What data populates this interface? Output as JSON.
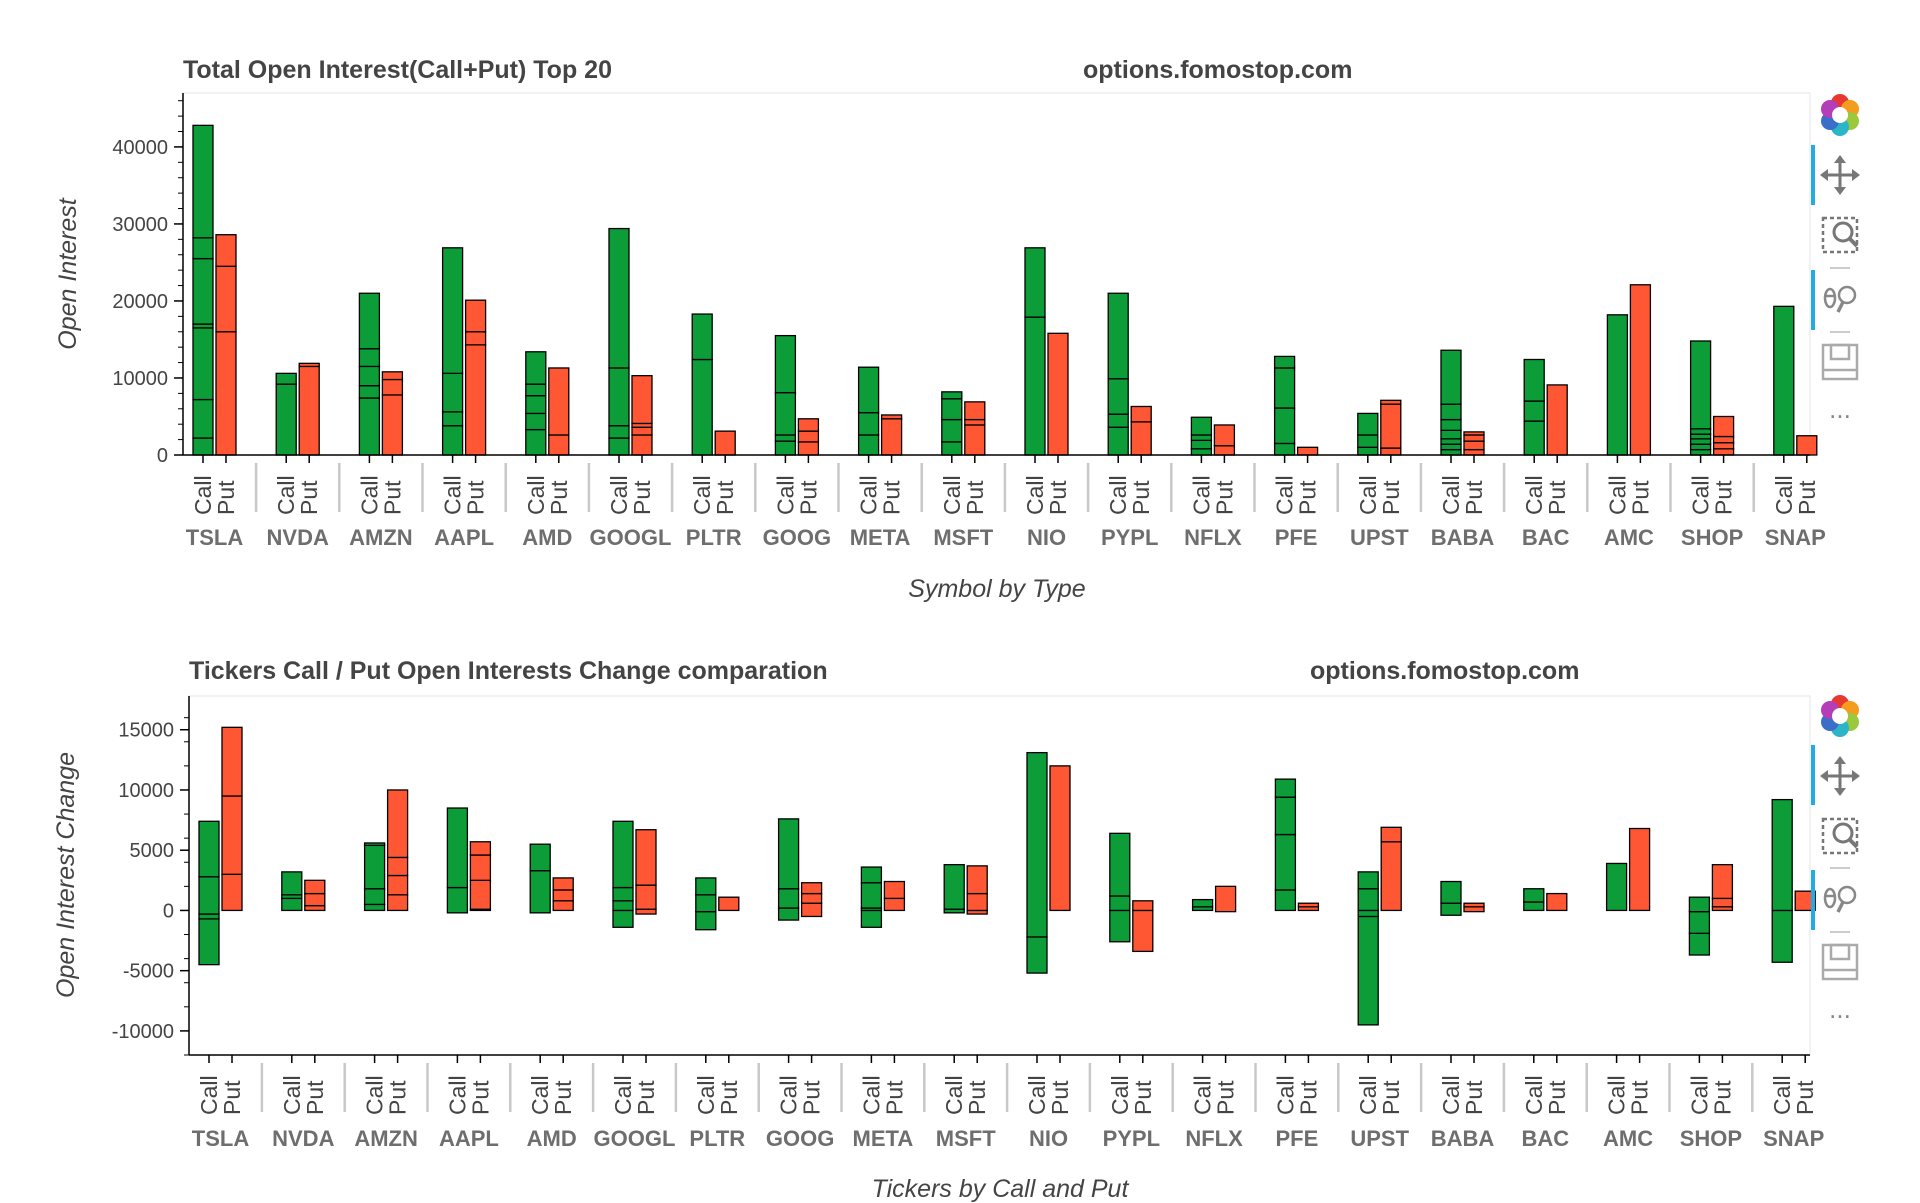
{
  "chart_data": [
    {
      "type": "bar",
      "stacked": true,
      "title": "Total Open Interest(Call+Put) Top 20",
      "watermark": "options.fomostop.com",
      "ylabel": "Open Interest",
      "xlabel": "Symbol by Type",
      "ylim": [
        0,
        47000
      ],
      "yticks": [
        0,
        10000,
        20000,
        30000,
        40000
      ],
      "subcategories": [
        "Call",
        "Put"
      ],
      "series_colors": {
        "Call": "#0c9d38",
        "Put": "#ff5733"
      },
      "groups": [
        {
          "name": "TSLA",
          "call": [
            0,
            2200,
            7200,
            16500,
            17000,
            25500,
            28200,
            42800
          ],
          "put": [
            0,
            16000,
            24500,
            28600
          ]
        },
        {
          "name": "NVDA",
          "call": [
            0,
            9200,
            10600
          ],
          "put": [
            0,
            11500,
            11900
          ]
        },
        {
          "name": "AMZN",
          "call": [
            0,
            7400,
            9000,
            11500,
            13800,
            21000
          ],
          "put": [
            0,
            7800,
            9800,
            10800
          ]
        },
        {
          "name": "AAPL",
          "call": [
            0,
            3800,
            5600,
            10600,
            26900
          ],
          "put": [
            0,
            14300,
            16000,
            20100
          ]
        },
        {
          "name": "AMD",
          "call": [
            0,
            3300,
            5400,
            7700,
            9200,
            13400
          ],
          "put": [
            0,
            2600,
            11300
          ]
        },
        {
          "name": "GOOGL",
          "call": [
            0,
            2200,
            3800,
            11300,
            29400
          ],
          "put": [
            0,
            2600,
            3600,
            4100,
            10300
          ]
        },
        {
          "name": "PLTR",
          "call": [
            0,
            12400,
            18300
          ],
          "put": [
            0,
            3100
          ]
        },
        {
          "name": "GOOG",
          "call": [
            0,
            1800,
            2600,
            8100,
            15500
          ],
          "put": [
            0,
            1700,
            3100,
            4700
          ]
        },
        {
          "name": "META",
          "call": [
            0,
            2600,
            5500,
            11400
          ],
          "put": [
            0,
            4700,
            5200
          ]
        },
        {
          "name": "MSFT",
          "call": [
            0,
            1700,
            4600,
            7300,
            8200
          ],
          "put": [
            0,
            3900,
            4600,
            6900
          ]
        },
        {
          "name": "NIO",
          "call": [
            0,
            17900,
            26900
          ],
          "put": [
            0,
            15800
          ]
        },
        {
          "name": "PYPL",
          "call": [
            0,
            3600,
            5300,
            9900,
            21000
          ],
          "put": [
            0,
            4300,
            6300
          ]
        },
        {
          "name": "NFLX",
          "call": [
            0,
            800,
            1900,
            2600,
            4900
          ],
          "put": [
            0,
            1200,
            3900
          ]
        },
        {
          "name": "PFE",
          "call": [
            0,
            1500,
            6100,
            11300,
            12800
          ],
          "put": [
            0,
            1000
          ]
        },
        {
          "name": "UPST",
          "call": [
            0,
            1000,
            2600,
            5400
          ],
          "put": [
            0,
            900,
            6600,
            7100
          ]
        },
        {
          "name": "BABA",
          "call": [
            0,
            700,
            1400,
            2100,
            3200,
            4600,
            6600,
            13600
          ],
          "put": [
            0,
            700,
            1800,
            2600,
            3000
          ]
        },
        {
          "name": "BAC",
          "call": [
            0,
            4400,
            7000,
            12400
          ],
          "put": [
            0,
            9100
          ]
        },
        {
          "name": "AMC",
          "call": [
            0,
            18200
          ],
          "put": [
            0,
            22100
          ]
        },
        {
          "name": "SHOP",
          "call": [
            0,
            700,
            1400,
            2100,
            2700,
            3400,
            14800
          ],
          "put": [
            0,
            800,
            1600,
            2400,
            5000
          ]
        },
        {
          "name": "SNAP",
          "call": [
            0,
            19300
          ],
          "put": [
            0,
            2500
          ]
        }
      ]
    },
    {
      "type": "bar",
      "stacked": true,
      "title": "Tickers Call / Put Open Interests Change comparation",
      "watermark": "options.fomostop.com",
      "ylabel": "Open Interest Change",
      "xlabel": "Tickers by Call and Put",
      "ylim": [
        -12000,
        17800
      ],
      "yticks": [
        -10000,
        -5000,
        0,
        5000,
        10000,
        15000
      ],
      "subcategories": [
        "Call",
        "Put"
      ],
      "series_colors": {
        "Call": "#0c9d38",
        "Put": "#ff5733"
      },
      "groups": [
        {
          "name": "TSLA",
          "call": [
            -4500,
            -700,
            -300,
            2800,
            7400
          ],
          "put": [
            0,
            3000,
            9500,
            15200
          ]
        },
        {
          "name": "NVDA",
          "call": [
            0,
            1000,
            1300,
            3200
          ],
          "put": [
            0,
            400,
            1400,
            2500
          ]
        },
        {
          "name": "AMZN",
          "call": [
            0,
            500,
            1800,
            5400,
            5600
          ],
          "put": [
            0,
            1300,
            2900,
            4400,
            10000
          ]
        },
        {
          "name": "AAPL",
          "call": [
            -200,
            1900,
            8500
          ],
          "put": [
            0,
            100,
            2500,
            4600,
            5700
          ]
        },
        {
          "name": "AMD",
          "call": [
            -200,
            3300,
            5500
          ],
          "put": [
            0,
            800,
            1700,
            2700
          ]
        },
        {
          "name": "GOOGL",
          "call": [
            -1400,
            0,
            800,
            1900,
            7400
          ],
          "put": [
            -300,
            100,
            2100,
            6700
          ]
        },
        {
          "name": "PLTR",
          "call": [
            -1600,
            -100,
            1300,
            2700
          ],
          "put": [
            0,
            1100
          ]
        },
        {
          "name": "GOOG",
          "call": [
            -800,
            200,
            1800,
            7600
          ],
          "put": [
            -500,
            600,
            1400,
            2300
          ]
        },
        {
          "name": "META",
          "call": [
            -1400,
            0,
            200,
            2300,
            3600
          ],
          "put": [
            0,
            1000,
            2400
          ]
        },
        {
          "name": "MSFT",
          "call": [
            -200,
            100,
            3800
          ],
          "put": [
            -300,
            0,
            1400,
            3700
          ]
        },
        {
          "name": "NIO",
          "call": [
            -5200,
            -2200,
            13100
          ],
          "put": [
            0,
            12000
          ]
        },
        {
          "name": "PYPL",
          "call": [
            -2600,
            0,
            1200,
            6400
          ],
          "put": [
            -3400,
            0,
            800
          ]
        },
        {
          "name": "NFLX",
          "call": [
            0,
            300,
            900
          ],
          "put": [
            -100,
            2000
          ]
        },
        {
          "name": "PFE",
          "call": [
            0,
            1700,
            6300,
            9400,
            10900
          ],
          "put": [
            0,
            300,
            600
          ]
        },
        {
          "name": "UPST",
          "call": [
            -9500,
            -500,
            0,
            1800,
            3200
          ],
          "put": [
            0,
            5700,
            6900
          ]
        },
        {
          "name": "BABA",
          "call": [
            -400,
            600,
            2400
          ],
          "put": [
            -100,
            300,
            600
          ]
        },
        {
          "name": "BAC",
          "call": [
            0,
            700,
            1800
          ],
          "put": [
            0,
            1400
          ]
        },
        {
          "name": "AMC",
          "call": [
            0,
            3900
          ],
          "put": [
            0,
            6800
          ]
        },
        {
          "name": "SHOP",
          "call": [
            -3700,
            -1900,
            -100,
            1100
          ],
          "put": [
            0,
            300,
            1000,
            3800
          ]
        },
        {
          "name": "SNAP",
          "call": [
            -4300,
            0,
            9200
          ],
          "put": [
            0,
            1600
          ]
        }
      ]
    }
  ],
  "toolbar_icons": [
    "bokeh-logo-icon",
    "pan-icon",
    "box-zoom-icon",
    "wheel-zoom-icon",
    "save-icon",
    "more-icon"
  ],
  "toolbar_more_label": "..."
}
